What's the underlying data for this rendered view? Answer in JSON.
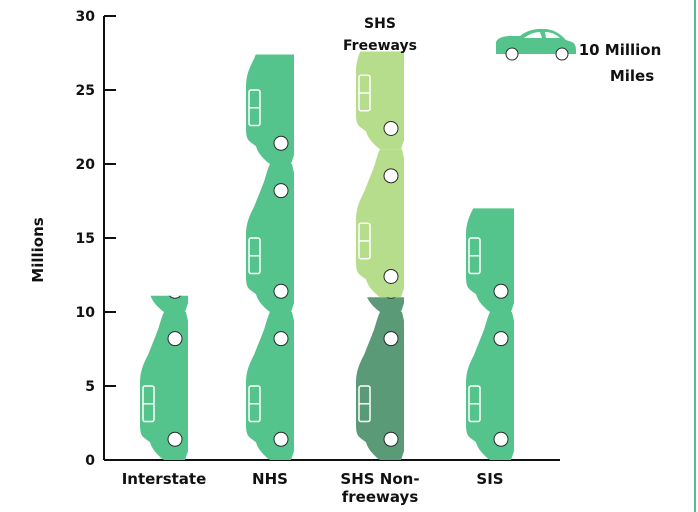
{
  "chart_data": {
    "type": "bar",
    "pictograph": "car",
    "title": "",
    "xlabel": "",
    "ylabel": "Millions",
    "ylim": [
      0,
      30
    ],
    "yticks": [
      "0",
      "5",
      "10",
      "15",
      "20",
      "25",
      "30"
    ],
    "categories": [
      "Interstate",
      "NHS",
      "SHS Non-freeways",
      "SIS"
    ],
    "category_lines": [
      [
        "Interstate"
      ],
      [
        "NHS"
      ],
      [
        "SHS Non-",
        "freeways"
      ],
      [
        "SIS"
      ]
    ],
    "series": [
      {
        "name": "",
        "color": "#55c48c",
        "values": [
          11.1,
          27.4,
          0,
          17.0
        ]
      },
      {
        "name": "SHS Non-freeways",
        "color": "#5a9a77",
        "values": [
          0,
          0,
          11.0,
          0
        ]
      },
      {
        "name": "SHS Freeways",
        "color": "#b6dd8c",
        "values": [
          0,
          0,
          16.6,
          0
        ]
      }
    ],
    "annotation": {
      "lines": [
        "SHS",
        "Freeways"
      ]
    },
    "legend": {
      "label_lines": [
        "10 Million",
        "Miles"
      ],
      "color": "#55c48c",
      "position": "top-right"
    },
    "units_per_icon": 10
  }
}
